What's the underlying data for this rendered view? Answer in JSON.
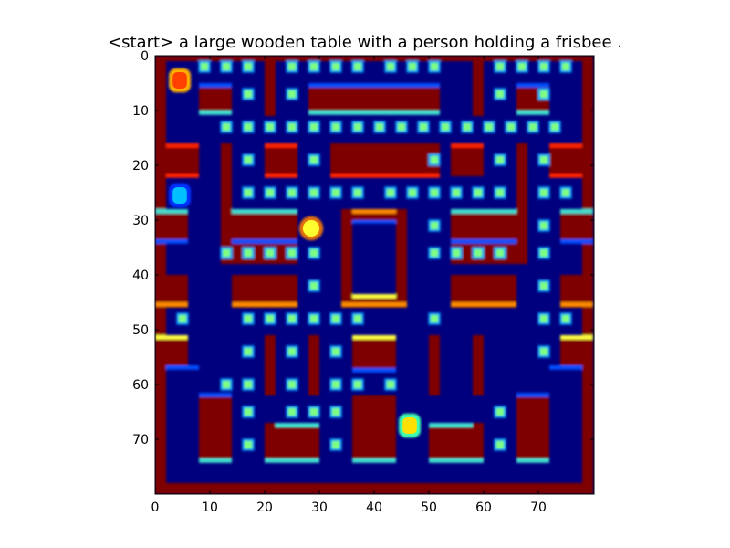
{
  "title": "<start> a large wooden table with a person holding a frisbee .",
  "axes": {
    "x_ticks": [
      "0",
      "10",
      "20",
      "30",
      "40",
      "50",
      "60",
      "70"
    ],
    "y_ticks": [
      "0",
      "10",
      "20",
      "30",
      "40",
      "50",
      "60",
      "70"
    ],
    "x_range": [
      0,
      80
    ],
    "y_range": [
      0,
      80
    ],
    "y_inverted": true
  },
  "colormap": "jet",
  "colors": {
    "background": "#00007f",
    "wall": "#7f0000",
    "pellet": "#7fff7f",
    "pellet_halo": "#00a0ff",
    "edge_cyan": "#40e0d0",
    "edge_orange": "#ff8c00",
    "edge_red": "#ff2000",
    "edge_blue": "#0050ff"
  },
  "game": {
    "pacman": {
      "x": 28.5,
      "y": 31.5
    },
    "ghosts": [
      {
        "x": 4.5,
        "y": 4.5
      },
      {
        "x": 4.5,
        "y": 25.5
      },
      {
        "x": 46.5,
        "y": 67.5
      }
    ]
  }
}
